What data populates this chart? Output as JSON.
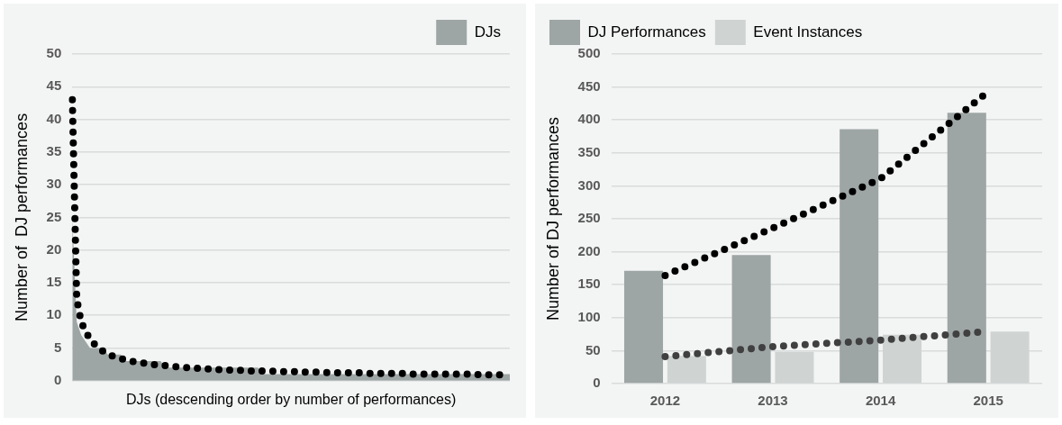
{
  "chart_data": [
    {
      "type": "area",
      "xlabel": "DJs (descending order by number of performances)",
      "ylabel": "Number of  DJ performances",
      "categories": [
        null,
        null,
        null,
        null,
        null,
        null,
        null,
        null,
        null,
        null,
        null,
        null,
        null,
        null,
        null,
        null,
        null,
        null,
        null,
        null,
        null,
        null,
        null,
        null,
        null,
        null,
        null,
        null,
        null,
        null,
        null,
        null,
        null,
        null,
        null,
        null,
        null,
        null,
        null,
        null,
        null,
        null,
        null,
        null,
        null,
        null,
        null,
        null,
        null,
        null,
        null,
        null,
        null,
        null,
        null,
        null,
        null,
        null,
        null,
        null,
        null,
        null,
        null,
        null,
        null,
        null,
        null,
        null,
        null,
        null,
        null,
        null,
        null,
        null,
        null,
        null,
        null,
        null,
        null,
        null,
        null,
        null,
        null,
        null,
        null,
        null,
        null,
        null,
        null,
        null,
        null,
        null,
        null,
        null,
        null,
        null,
        null,
        null,
        null,
        null
      ],
      "ylim": [
        0,
        50
      ],
      "yticks": [
        0,
        5,
        10,
        15,
        20,
        25,
        30,
        35,
        40,
        45,
        50
      ],
      "tick_labels": "y",
      "grid": "y",
      "legend": "top right",
      "series": [
        {
          "name": "DJs",
          "color": "#9ea5a5",
          "values": [
            25,
            9,
            7,
            6,
            5,
            5,
            5,
            5,
            4,
            4,
            4,
            4,
            3,
            3,
            3,
            3,
            3,
            3,
            3,
            3,
            3,
            2,
            2,
            2,
            2,
            2,
            2,
            2,
            2,
            2,
            2,
            2,
            2,
            2,
            2,
            2,
            2,
            2,
            2,
            2,
            2,
            2,
            2,
            1,
            1,
            1,
            1,
            1,
            1,
            1,
            1,
            1,
            1,
            1,
            1,
            1,
            1,
            1,
            1,
            1,
            1,
            1,
            1,
            1,
            1,
            1,
            1,
            1,
            1,
            1,
            1,
            1,
            1,
            1,
            1,
            1,
            1,
            1,
            1,
            1,
            1,
            1,
            1,
            1,
            1,
            1,
            1,
            1,
            1,
            1,
            1,
            1,
            1,
            1,
            1,
            1,
            1,
            1,
            1,
            1
          ]
        },
        {
          "type": "line",
          "color": "#000000",
          "line_style": "dotted",
          "values": [
            43,
            12.5,
            9,
            7.5,
            6.4,
            5.6,
            5,
            4.5,
            4.1,
            3.8,
            3.6,
            3.4,
            3.2,
            3,
            2.9,
            2.8,
            2.7,
            2.6,
            2.5,
            2.4,
            2.4,
            2.3,
            2.2,
            2.2,
            2.1,
            2.1,
            2,
            2,
            1.9,
            1.9,
            1.8,
            1.8,
            1.8,
            1.7,
            1.7,
            1.7,
            1.6,
            1.6,
            1.6,
            1.6,
            1.5,
            1.5,
            1.5,
            1.5,
            1.5,
            1.5,
            1.4,
            1.4,
            1.4,
            1.4,
            1.4,
            1.4,
            1.3,
            1.3,
            1.3,
            1.3,
            1.3,
            1.3,
            1.2,
            1.2,
            1.2,
            1.2,
            1.2,
            1.2,
            1.2,
            1.2,
            1.1,
            1.1,
            1.1,
            1.1,
            1.1,
            1.1,
            1.1,
            1.1,
            1.1,
            1.1,
            1.1,
            1,
            1,
            1,
            1,
            1,
            1,
            1,
            1,
            1,
            1,
            1,
            1,
            1,
            1,
            1,
            0.9,
            0.9,
            0.9,
            0.9,
            0.9,
            0.9,
            0.9,
            0.9
          ]
        }
      ]
    },
    {
      "type": "bar",
      "categories": [
        "2012",
        "2013",
        "2014",
        "2015"
      ],
      "ylabel": "Number of DJ performances",
      "ylim": [
        0,
        500
      ],
      "yticks": [
        0,
        50,
        100,
        150,
        200,
        250,
        300,
        350,
        400,
        450,
        500
      ],
      "grid": "y",
      "legend": "top left",
      "series": [
        {
          "name": "DJ Performances",
          "color": "#9ea5a5",
          "values": [
            171,
            195,
            386,
            411
          ]
        },
        {
          "name": "Event Instances",
          "color": "#cfd4d3",
          "values": [
            42,
            48,
            74,
            79
          ]
        },
        {
          "type": "line",
          "color": "#000000",
          "line_style": "dotted",
          "values": [
            164,
            236,
            311,
            443
          ]
        },
        {
          "type": "line",
          "color": "#404040",
          "line_style": "dotted",
          "values": [
            41,
            56,
            66,
            79
          ]
        }
      ]
    }
  ]
}
